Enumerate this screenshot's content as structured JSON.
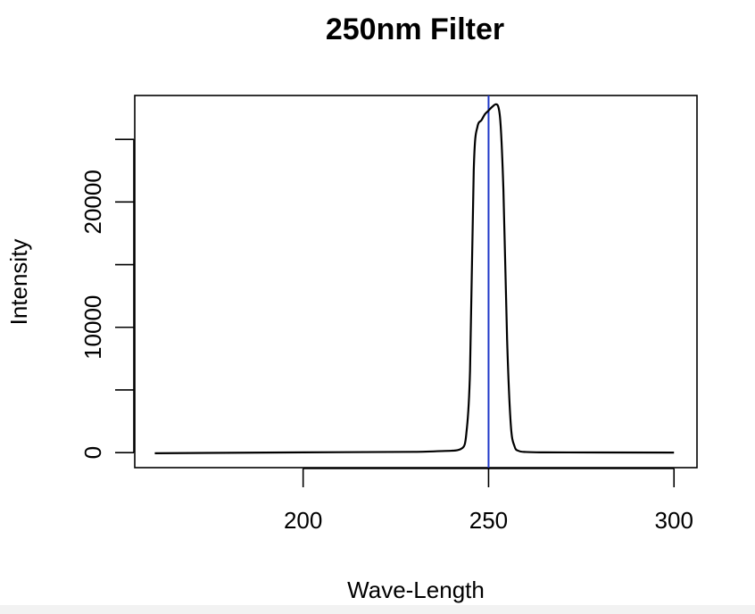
{
  "chart_data": {
    "type": "line",
    "title": "250nm Filter",
    "xlabel": "Wave-Length",
    "ylabel": "Intensity",
    "xlim": [
      154.6,
      306.2
    ],
    "ylim": [
      -1200,
      28500
    ],
    "x_ticks": [
      200,
      250,
      300
    ],
    "x_tick_labels": [
      "200",
      "250",
      "300"
    ],
    "y_ticks": [
      0,
      5000,
      10000,
      15000,
      20000,
      25000
    ],
    "y_tick_labels": [
      "0",
      "",
      "10000",
      "",
      "20000",
      ""
    ],
    "grid": false,
    "series": [
      {
        "color": "#000000",
        "x": [
          160,
          200,
          230,
          240,
          243,
          244,
          245,
          246,
          247,
          248,
          249,
          250,
          251,
          252,
          253,
          254,
          255,
          256,
          257,
          258,
          260,
          265,
          280,
          300
        ],
        "y": [
          -50,
          20,
          60,
          150,
          380,
          1500,
          6500,
          22500,
          26000,
          26500,
          27000,
          27300,
          27600,
          27800,
          27000,
          21000,
          9000,
          2200,
          500,
          150,
          50,
          20,
          10,
          0
        ]
      }
    ],
    "reference_lines": [
      {
        "orientation": "vertical",
        "x": 250,
        "color": "#2038c8"
      }
    ]
  }
}
